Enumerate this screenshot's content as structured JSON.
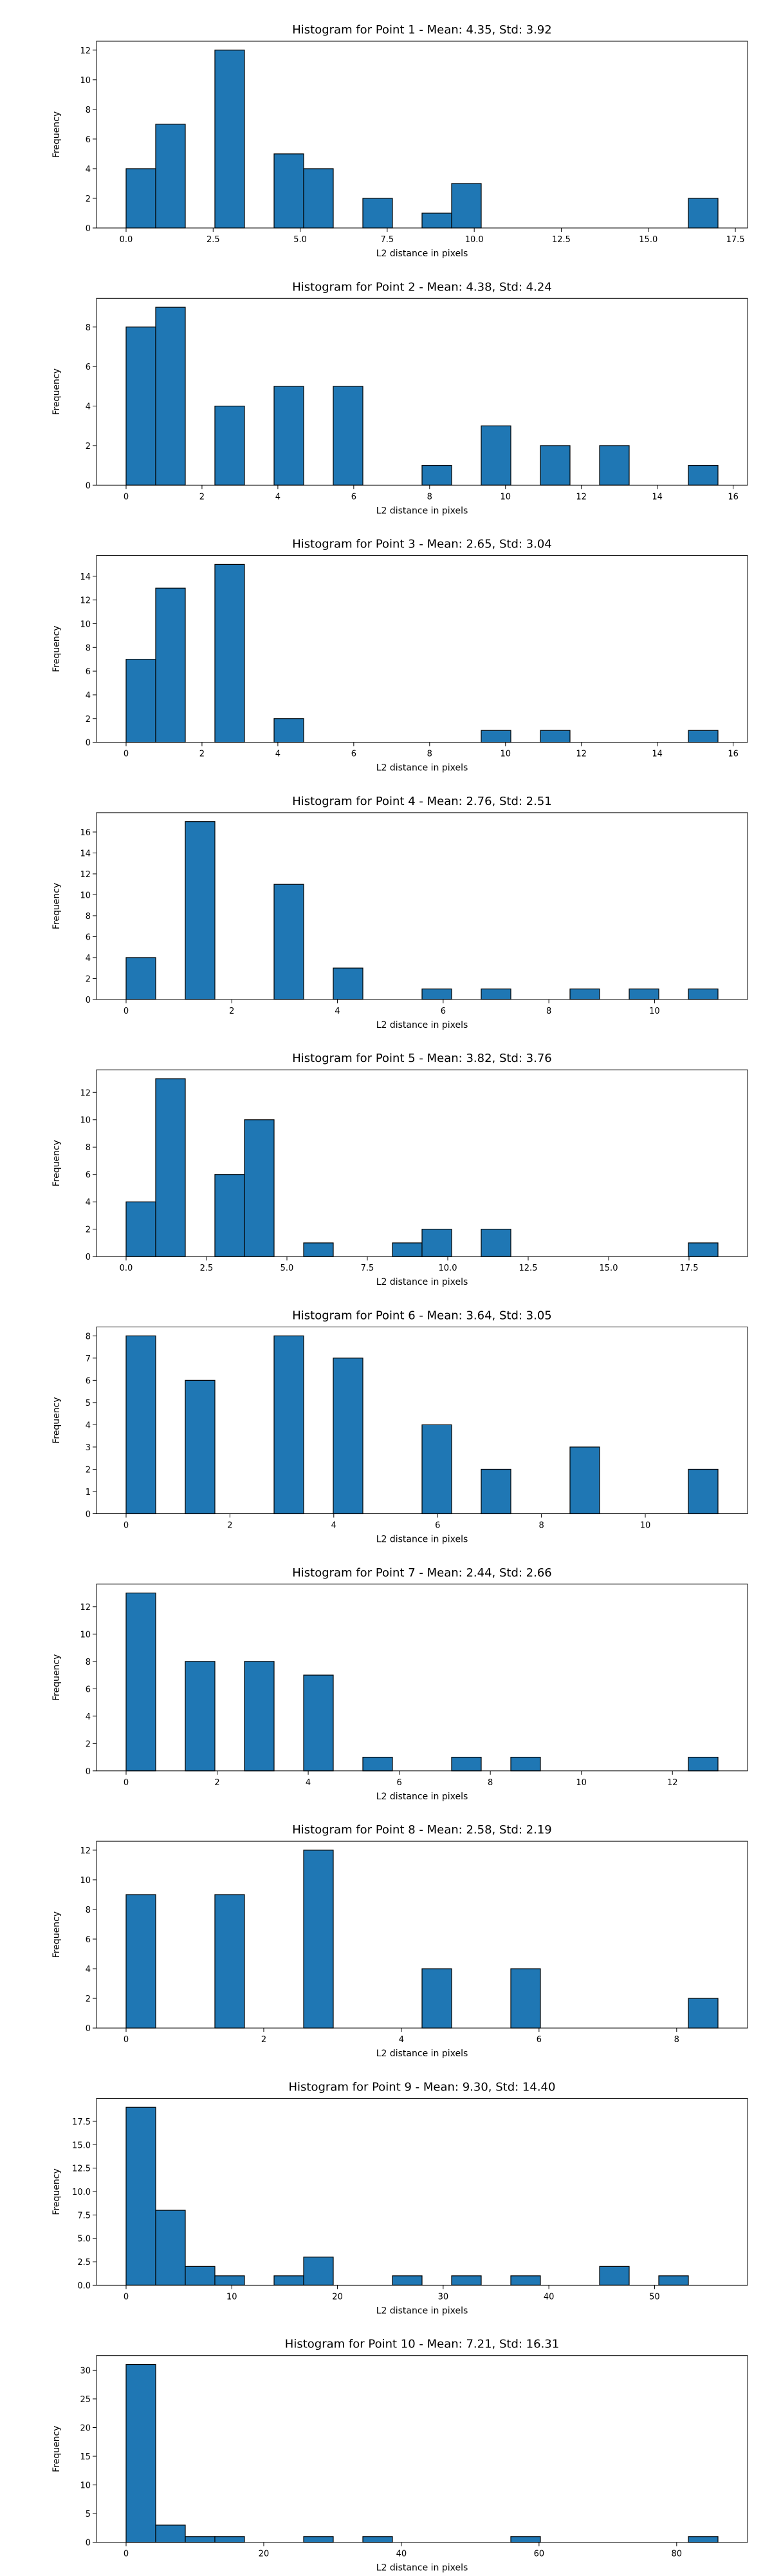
{
  "chart_data": [
    {
      "type": "bar",
      "title": "Histogram for Point 1 - Mean: 4.35, Std: 3.92",
      "xlabel": "L2 distance in pixels",
      "ylabel": "Frequency",
      "xlim": [
        -0.85,
        17.85
      ],
      "ylim": [
        0,
        12.6
      ],
      "xticks": [
        0.0,
        2.5,
        5.0,
        7.5,
        10.0,
        12.5,
        15.0,
        17.5
      ],
      "xticklabels": [
        "0.0",
        "2.5",
        "5.0",
        "7.5",
        "10.0",
        "12.5",
        "15.0",
        "17.5"
      ],
      "yticks": [
        0,
        2,
        4,
        6,
        8,
        10,
        12
      ],
      "yticklabels": [
        "0",
        "2",
        "4",
        "6",
        "8",
        "10",
        "12"
      ],
      "bin_width": 0.85,
      "bins": [
        [
          0.0,
          4
        ],
        [
          0.85,
          7
        ],
        [
          2.55,
          12
        ],
        [
          4.25,
          5
        ],
        [
          5.1,
          4
        ],
        [
          6.8,
          2
        ],
        [
          8.5,
          1
        ],
        [
          9.35,
          3
        ],
        [
          16.15,
          2
        ]
      ]
    },
    {
      "type": "bar",
      "title": "Histogram for Point 2 - Mean: 4.38, Std: 4.24",
      "xlabel": "L2 distance in pixels",
      "ylabel": "Frequency",
      "xlim": [
        -0.78,
        16.38
      ],
      "ylim": [
        0,
        9.45
      ],
      "xticks": [
        0,
        2,
        4,
        6,
        8,
        10,
        12,
        14,
        16
      ],
      "xticklabels": [
        "0",
        "2",
        "4",
        "6",
        "8",
        "10",
        "12",
        "14",
        "16"
      ],
      "yticks": [
        0,
        2,
        4,
        6,
        8
      ],
      "yticklabels": [
        "0",
        "2",
        "4",
        "6",
        "8"
      ],
      "bin_width": 0.78,
      "bins": [
        [
          0.0,
          8
        ],
        [
          0.78,
          9
        ],
        [
          2.34,
          4
        ],
        [
          3.9,
          5
        ],
        [
          5.46,
          5
        ],
        [
          7.8,
          1
        ],
        [
          9.36,
          3
        ],
        [
          10.92,
          2
        ],
        [
          12.48,
          2
        ],
        [
          14.82,
          1
        ]
      ]
    },
    {
      "type": "bar",
      "title": "Histogram for Point 3 - Mean: 2.65, Std: 3.04",
      "xlabel": "L2 distance in pixels",
      "ylabel": "Frequency",
      "xlim": [
        -0.78,
        16.38
      ],
      "ylim": [
        0,
        15.75
      ],
      "xticks": [
        0,
        2,
        4,
        6,
        8,
        10,
        12,
        14,
        16
      ],
      "xticklabels": [
        "0",
        "2",
        "4",
        "6",
        "8",
        "10",
        "12",
        "14",
        "16"
      ],
      "yticks": [
        0,
        2,
        4,
        6,
        8,
        10,
        12,
        14
      ],
      "yticklabels": [
        "0",
        "2",
        "4",
        "6",
        "8",
        "10",
        "12",
        "14"
      ],
      "bin_width": 0.78,
      "bins": [
        [
          0.0,
          7
        ],
        [
          0.78,
          13
        ],
        [
          2.34,
          15
        ],
        [
          3.9,
          2
        ],
        [
          9.36,
          1
        ],
        [
          10.92,
          1
        ],
        [
          14.82,
          1
        ]
      ]
    },
    {
      "type": "bar",
      "title": "Histogram for Point 4 - Mean: 2.76, Std: 2.51",
      "xlabel": "L2 distance in pixels",
      "ylabel": "Frequency",
      "xlim": [
        -0.56,
        11.76
      ],
      "ylim": [
        0,
        17.85
      ],
      "xticks": [
        0,
        2,
        4,
        6,
        8,
        10
      ],
      "xticklabels": [
        "0",
        "2",
        "4",
        "6",
        "8",
        "10"
      ],
      "yticks": [
        0,
        2,
        4,
        6,
        8,
        10,
        12,
        14,
        16
      ],
      "yticklabels": [
        "0",
        "2",
        "4",
        "6",
        "8",
        "10",
        "12",
        "14",
        "16"
      ],
      "bin_width": 0.56,
      "bins": [
        [
          0.0,
          4
        ],
        [
          1.12,
          17
        ],
        [
          2.8,
          11
        ],
        [
          3.92,
          3
        ],
        [
          5.6,
          1
        ],
        [
          6.72,
          1
        ],
        [
          8.4,
          1
        ],
        [
          9.52,
          1
        ],
        [
          10.64,
          1
        ]
      ]
    },
    {
      "type": "bar",
      "title": "Histogram for Point 5 - Mean: 3.82, Std: 3.76",
      "xlabel": "L2 distance in pixels",
      "ylabel": "Frequency",
      "xlim": [
        -0.92,
        19.32
      ],
      "ylim": [
        0,
        13.65
      ],
      "xticks": [
        0.0,
        2.5,
        5.0,
        7.5,
        10.0,
        12.5,
        15.0,
        17.5
      ],
      "xticklabels": [
        "0.0",
        "2.5",
        "5.0",
        "7.5",
        "10.0",
        "12.5",
        "15.0",
        "17.5"
      ],
      "yticks": [
        0,
        2,
        4,
        6,
        8,
        10,
        12
      ],
      "yticklabels": [
        "0",
        "2",
        "4",
        "6",
        "8",
        "10",
        "12"
      ],
      "bin_width": 0.92,
      "bins": [
        [
          0.0,
          4
        ],
        [
          0.92,
          13
        ],
        [
          2.76,
          6
        ],
        [
          3.68,
          10
        ],
        [
          5.52,
          1
        ],
        [
          8.28,
          1
        ],
        [
          9.2,
          2
        ],
        [
          11.04,
          2
        ],
        [
          17.48,
          1
        ]
      ]
    },
    {
      "type": "bar",
      "title": "Histogram for Point 6 - Mean: 3.64, Std: 3.05",
      "xlabel": "L2 distance in pixels",
      "ylabel": "Frequency",
      "xlim": [
        -0.57,
        11.97
      ],
      "ylim": [
        0,
        8.4
      ],
      "xticks": [
        0,
        2,
        4,
        6,
        8,
        10
      ],
      "xticklabels": [
        "0",
        "2",
        "4",
        "6",
        "8",
        "10"
      ],
      "yticks": [
        0,
        1,
        2,
        3,
        4,
        5,
        6,
        7,
        8
      ],
      "yticklabels": [
        "0",
        "1",
        "2",
        "3",
        "4",
        "5",
        "6",
        "7",
        "8"
      ],
      "bin_width": 0.57,
      "bins": [
        [
          0.0,
          8
        ],
        [
          1.14,
          6
        ],
        [
          2.85,
          8
        ],
        [
          3.99,
          7
        ],
        [
          5.7,
          4
        ],
        [
          6.84,
          2
        ],
        [
          8.55,
          3
        ],
        [
          10.83,
          2
        ]
      ]
    },
    {
      "type": "bar",
      "title": "Histogram for Point 7 - Mean: 2.44, Std: 2.66",
      "xlabel": "L2 distance in pixels",
      "ylabel": "Frequency",
      "xlim": [
        -0.65,
        13.65
      ],
      "ylim": [
        0,
        13.65
      ],
      "xticks": [
        0,
        2,
        4,
        6,
        8,
        10,
        12
      ],
      "xticklabels": [
        "0",
        "2",
        "4",
        "6",
        "8",
        "10",
        "12"
      ],
      "yticks": [
        0,
        2,
        4,
        6,
        8,
        10,
        12
      ],
      "yticklabels": [
        "0",
        "2",
        "4",
        "6",
        "8",
        "10",
        "12"
      ],
      "bin_width": 0.65,
      "bins": [
        [
          0.0,
          13
        ],
        [
          1.3,
          8
        ],
        [
          2.6,
          8
        ],
        [
          3.9,
          7
        ],
        [
          5.2,
          1
        ],
        [
          7.15,
          1
        ],
        [
          8.45,
          1
        ],
        [
          12.35,
          1
        ]
      ]
    },
    {
      "type": "bar",
      "title": "Histogram for Point 8 - Mean: 2.58, Std: 2.19",
      "xlabel": "L2 distance in pixels",
      "ylabel": "Frequency",
      "xlim": [
        -0.43,
        9.03
      ],
      "ylim": [
        0,
        12.6
      ],
      "xticks": [
        0,
        2,
        4,
        6,
        8
      ],
      "xticklabels": [
        "0",
        "2",
        "4",
        "6",
        "8"
      ],
      "yticks": [
        0,
        2,
        4,
        6,
        8,
        10,
        12
      ],
      "yticklabels": [
        "0",
        "2",
        "4",
        "6",
        "8",
        "10",
        "12"
      ],
      "bin_width": 0.43,
      "bins": [
        [
          0.0,
          9
        ],
        [
          1.29,
          9
        ],
        [
          2.58,
          12
        ],
        [
          4.3,
          4
        ],
        [
          5.59,
          4
        ],
        [
          8.17,
          2
        ]
      ]
    },
    {
      "type": "bar",
      "title": "Histogram for Point 9 - Mean: 9.30, Std: 14.40",
      "xlabel": "L2 distance in pixels",
      "ylabel": "Frequency",
      "xlim": [
        -2.8,
        58.8
      ],
      "ylim": [
        0,
        19.95
      ],
      "xticks": [
        0,
        10,
        20,
        30,
        40,
        50
      ],
      "xticklabels": [
        "0",
        "10",
        "20",
        "30",
        "40",
        "50"
      ],
      "yticks": [
        0,
        2.5,
        5,
        7.5,
        10,
        12.5,
        15,
        17.5
      ],
      "yticklabels": [
        "0.0",
        "2.5",
        "5.0",
        "7.5",
        "10.0",
        "12.5",
        "15.0",
        "17.5"
      ],
      "bin_width": 2.8,
      "bins": [
        [
          0.0,
          19
        ],
        [
          2.8,
          8
        ],
        [
          5.6,
          2
        ],
        [
          8.4,
          1
        ],
        [
          14.0,
          1
        ],
        [
          16.8,
          3
        ],
        [
          25.2,
          1
        ],
        [
          30.8,
          1
        ],
        [
          36.4,
          1
        ],
        [
          44.8,
          2
        ],
        [
          50.4,
          1
        ]
      ]
    },
    {
      "type": "bar",
      "title": "Histogram for Point 10 - Mean: 7.21, Std: 16.31",
      "xlabel": "L2 distance in pixels",
      "ylabel": "Frequency",
      "xlim": [
        -4.3,
        90.3
      ],
      "ylim": [
        0,
        32.55
      ],
      "xticks": [
        0,
        20,
        40,
        60,
        80
      ],
      "xticklabels": [
        "0",
        "20",
        "40",
        "60",
        "80"
      ],
      "yticks": [
        0,
        5,
        10,
        15,
        20,
        25,
        30
      ],
      "yticklabels": [
        "0",
        "5",
        "10",
        "15",
        "20",
        "25",
        "30"
      ],
      "bin_width": 4.3,
      "bins": [
        [
          0.0,
          31
        ],
        [
          4.3,
          3
        ],
        [
          8.6,
          1
        ],
        [
          12.9,
          1
        ],
        [
          25.8,
          1
        ],
        [
          34.4,
          1
        ],
        [
          55.9,
          1
        ],
        [
          81.7,
          1
        ]
      ]
    }
  ]
}
